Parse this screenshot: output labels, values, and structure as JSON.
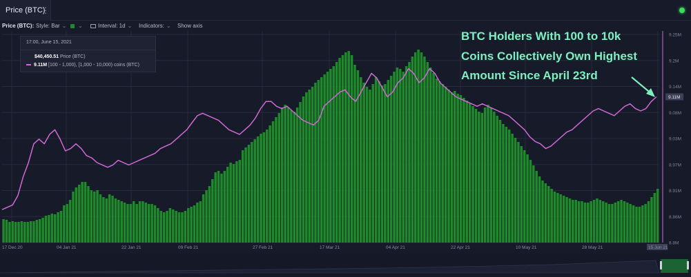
{
  "tab": {
    "title": "Price (BTC)",
    "menu_icon": "kebab-menu-icon"
  },
  "toolbar": {
    "label": "Price (BTC):",
    "style": "Style: Bar",
    "interval": "Interval: 1d",
    "indicators": "Indicators:",
    "show_axis": "Show axis",
    "bar_color": "#1f8a2a"
  },
  "tooltip": {
    "date": "17:00, June 15, 2021",
    "price_value": "$40,450.51",
    "price_label": "Price (BTC)",
    "holdings_value": "9.11M",
    "holdings_label": "[100 - 1,000), [1,000 - 10,000) coins (BTC)"
  },
  "annotation": {
    "line1": "BTC Holders With 100 to 10k",
    "line2": "Coins Collectively Own Highest",
    "line3": "Amount Since April 23rd"
  },
  "chart_data": {
    "type": "bar",
    "overlay_type": "line",
    "x_ticks": [
      "17 Dec 20",
      "04 Jan 21",
      "22 Jan 21",
      "09 Feb 21",
      "27 Feb 21",
      "17 Mar 21",
      "04 Apr 21",
      "22 Apr 21",
      "10 May 21",
      "28 May 21",
      "15 Jun 21"
    ],
    "y_right_ticks": [
      "9.25M",
      "9.2M",
      "9.14M",
      "9.08M",
      "9.03M",
      "8.97M",
      "8.91M",
      "8.86M",
      "8.8M"
    ],
    "y_right_range": [
      8.8,
      9.25
    ],
    "current_value_label": "9.11M",
    "grid": true,
    "colors": {
      "bars": "#1f8a2a",
      "line": "#d06ad6",
      "annotation": "#7ef0c0"
    },
    "series": [
      {
        "type": "bar",
        "values": [
          34,
          33,
          30,
          31,
          30,
          30,
          31,
          30,
          30,
          31,
          31,
          33,
          34,
          36,
          39,
          40,
          42,
          41,
          44,
          46,
          54,
          56,
          62,
          74,
          80,
          84,
          88,
          88,
          82,
          76,
          74,
          76,
          70,
          66,
          64,
          70,
          68,
          64,
          62,
          60,
          58,
          56,
          56,
          60,
          56,
          60,
          60,
          58,
          56,
          56,
          54,
          50,
          46,
          44,
          46,
          50,
          48,
          46,
          44,
          44,
          46,
          50,
          52,
          54,
          58,
          60,
          70,
          76,
          82,
          92,
          102,
          104,
          100,
          104,
          110,
          116,
          114,
          118,
          120,
          134,
          138,
          142,
          146,
          150,
          154,
          158,
          160,
          164,
          170,
          176,
          182,
          188,
          196,
          200,
          196,
          192,
          190,
          196,
          204,
          212,
          218,
          222,
          226,
          232,
          236,
          240,
          244,
          248,
          252,
          256,
          262,
          268,
          272,
          276,
          278,
          272,
          258,
          250,
          240,
          232,
          226,
          222,
          230,
          240,
          234,
          228,
          230,
          236,
          242,
          248,
          254,
          252,
          248,
          256,
          262,
          270,
          276,
          280,
          276,
          270,
          262,
          254,
          246,
          238,
          234,
          230,
          226,
          222,
          218,
          220,
          216,
          214,
          210,
          206,
          202,
          198,
          194,
          190,
          188,
          196,
          200,
          196,
          190,
          184,
          178,
          172,
          168,
          164,
          158,
          152,
          146,
          140,
          134,
          128,
          120,
          112,
          104,
          96,
          90,
          86,
          82,
          78,
          74,
          72,
          70,
          68,
          66,
          64,
          62,
          62,
          60,
          60,
          58,
          58,
          60,
          62,
          64,
          62,
          60,
          58,
          56,
          56,
          58,
          60,
          62,
          60,
          58,
          56,
          54,
          52,
          52,
          54,
          56,
          60,
          66,
          72,
          78
        ]
      },
      {
        "type": "line",
        "values": [
          8.87,
          8.875,
          8.88,
          8.9,
          8.94,
          8.97,
          9.01,
          9.02,
          9.01,
          9.03,
          9.04,
          9.02,
          8.995,
          9.0,
          9.01,
          9.0,
          8.985,
          8.98,
          8.97,
          8.965,
          8.96,
          8.965,
          8.975,
          8.97,
          8.965,
          8.97,
          8.975,
          8.98,
          8.985,
          8.99,
          9.0,
          9.005,
          9.01,
          9.02,
          9.03,
          9.04,
          9.055,
          9.07,
          9.075,
          9.07,
          9.065,
          9.06,
          9.05,
          9.04,
          9.035,
          9.03,
          9.04,
          9.05,
          9.065,
          9.085,
          9.1,
          9.1,
          9.09,
          9.085,
          9.09,
          9.08,
          9.07,
          9.06,
          9.055,
          9.05,
          9.06,
          9.09,
          9.1,
          9.11,
          9.12,
          9.125,
          9.11,
          9.1,
          9.12,
          9.14,
          9.16,
          9.15,
          9.13,
          9.11,
          9.12,
          9.14,
          9.15,
          9.17,
          9.16,
          9.14,
          9.15,
          9.17,
          9.16,
          9.14,
          9.13,
          9.12,
          9.11,
          9.105,
          9.1,
          9.095,
          9.09,
          9.095,
          9.09,
          9.085,
          9.08,
          9.075,
          9.07,
          9.06,
          9.05,
          9.04,
          9.025,
          9.015,
          9.01,
          9.0,
          9.005,
          9.015,
          9.025,
          9.035,
          9.04,
          9.05,
          9.06,
          9.07,
          9.08,
          9.085,
          9.08,
          9.075,
          9.07,
          9.08,
          9.09,
          9.095,
          9.085,
          9.08,
          9.085,
          9.1,
          9.11
        ]
      }
    ]
  }
}
